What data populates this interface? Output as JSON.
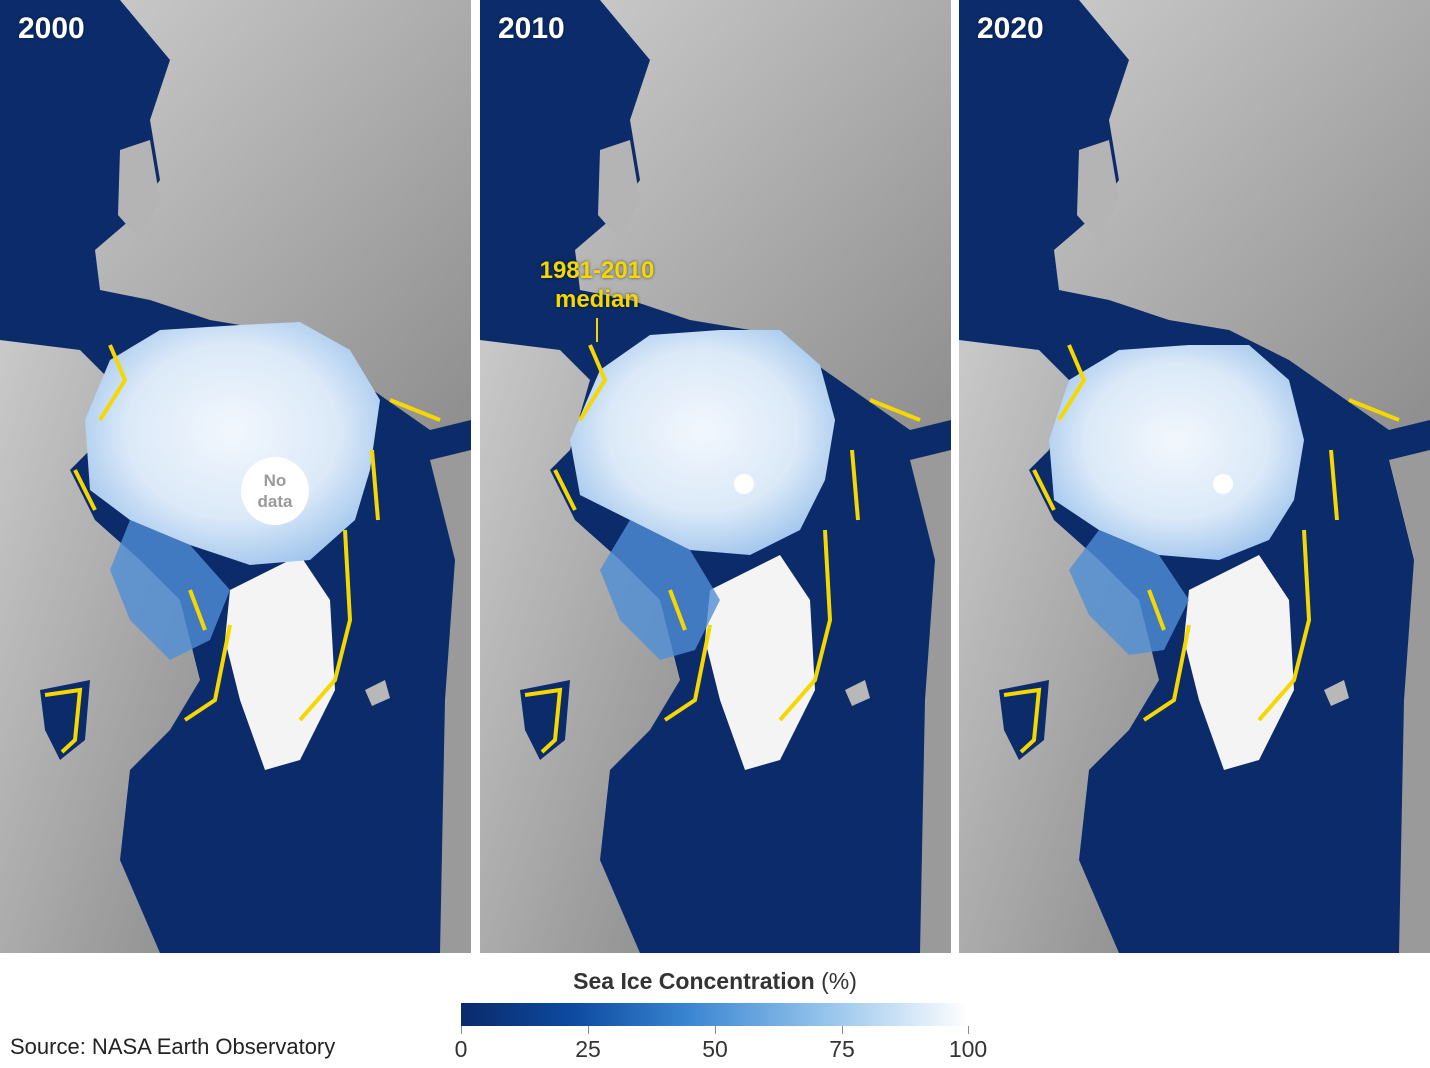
{
  "panels": [
    {
      "year": "2000",
      "no_data_label": [
        "No",
        "data"
      ]
    },
    {
      "year": "2010",
      "median_label": [
        "1981-2010",
        "median"
      ]
    },
    {
      "year": "2020"
    }
  ],
  "legend": {
    "title_strong": "Sea Ice Concentration",
    "title_unit": "(%)",
    "ticks": [
      "0",
      "25",
      "50",
      "75",
      "100"
    ]
  },
  "source": "Source: NASA Earth Observatory",
  "colors": {
    "ocean": "#0b2b6a",
    "land": "#a9a9a9",
    "ice_high": "#eef5fd",
    "ice_low": "#2f6fc4",
    "median_line": "#f5d800"
  }
}
